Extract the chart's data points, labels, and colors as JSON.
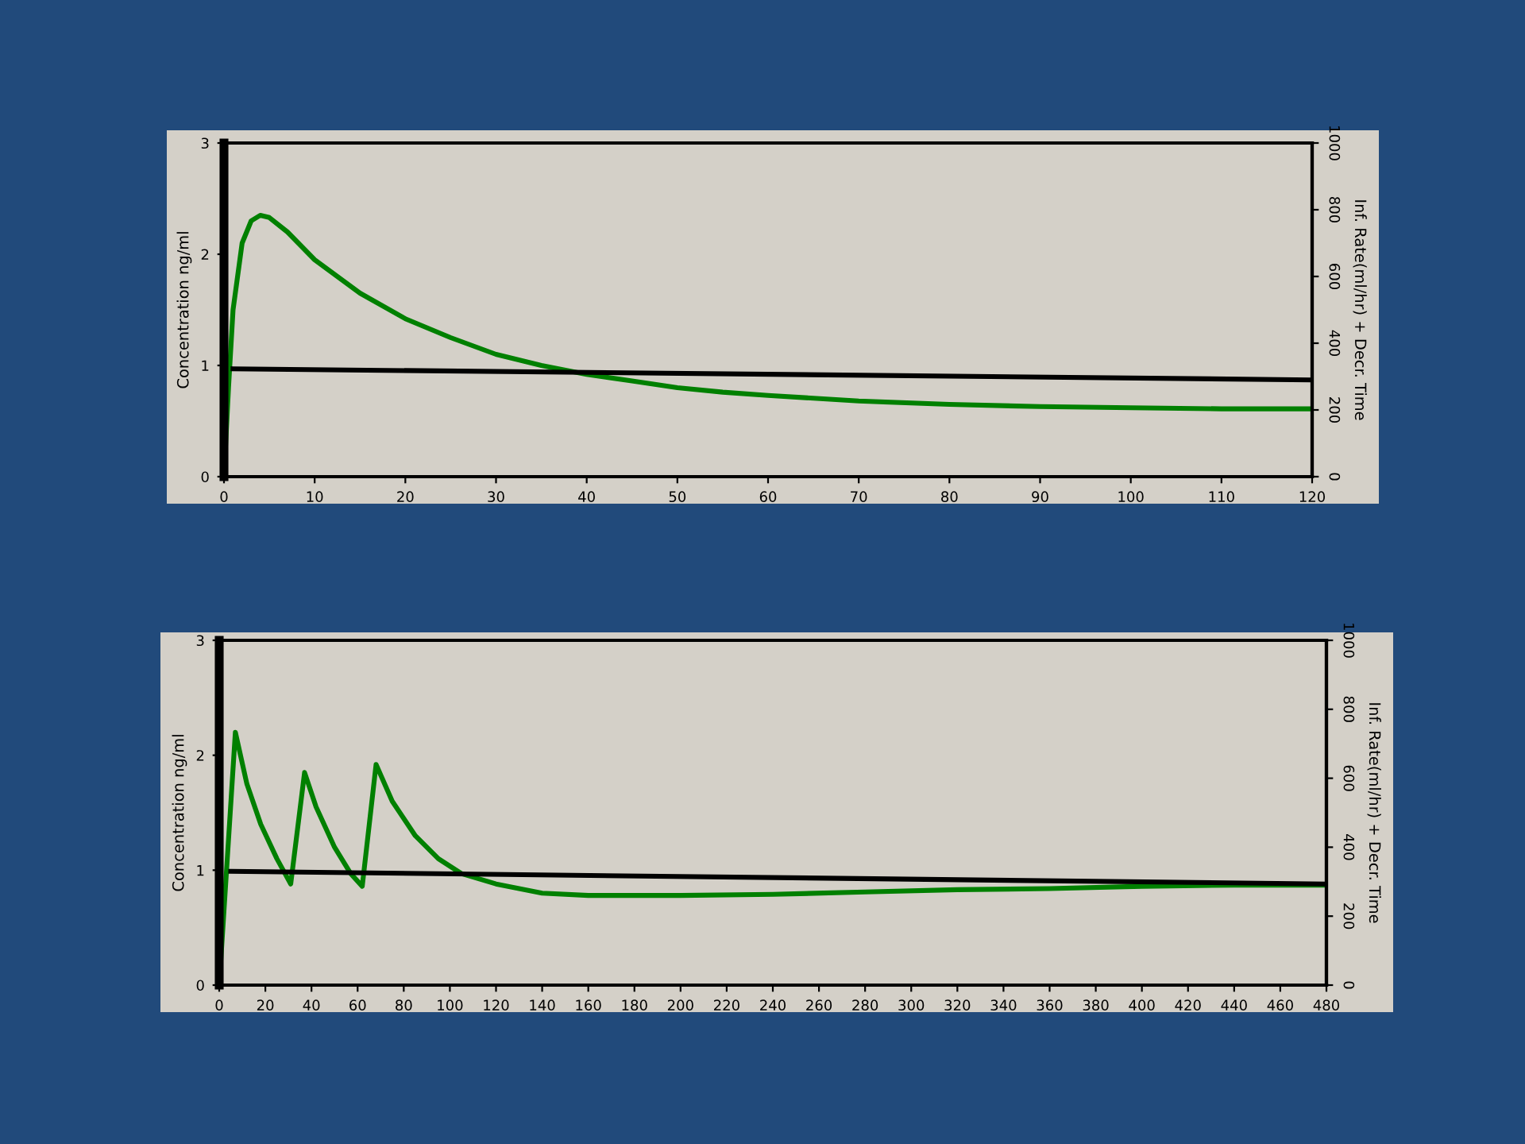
{
  "chart_data": [
    {
      "type": "line",
      "ylabel": "Concentration ng/ml",
      "y2label": "Inf. Rate(ml/hr) + Decr. Time",
      "xlim": [
        0,
        120
      ],
      "xticks": [
        0,
        10,
        20,
        30,
        40,
        50,
        60,
        70,
        80,
        90,
        100,
        110,
        120
      ],
      "ylim": [
        0,
        3
      ],
      "yticks": [
        0,
        1,
        2,
        3
      ],
      "y2lim": [
        0,
        1000
      ],
      "y2ticks": [
        0,
        200,
        400,
        600,
        800,
        1000
      ],
      "grid": false,
      "legend": false,
      "series": [
        {
          "color": "#008000",
          "x": [
            0,
            0.5,
            1,
            2,
            3,
            4,
            5,
            7,
            10,
            15,
            20,
            25,
            30,
            35,
            40,
            45,
            50,
            55,
            60,
            70,
            80,
            90,
            100,
            110,
            120
          ],
          "values": [
            0,
            0.8,
            1.5,
            2.1,
            2.3,
            2.35,
            2.33,
            2.2,
            1.95,
            1.65,
            1.42,
            1.25,
            1.1,
            1.0,
            0.92,
            0.86,
            0.8,
            0.76,
            0.73,
            0.68,
            0.65,
            0.63,
            0.62,
            0.61,
            0.61
          ]
        },
        {
          "color": "#000000",
          "x": [
            1,
            120
          ],
          "values": [
            0.97,
            0.87
          ]
        }
      ]
    },
    {
      "type": "line",
      "ylabel": "Concentration ng/ml",
      "y2label": "Inf. Rate(ml/hr) + Decr. Time",
      "xlim": [
        0,
        480
      ],
      "xticks": [
        0,
        20,
        40,
        60,
        80,
        100,
        120,
        140,
        160,
        180,
        200,
        220,
        240,
        260,
        280,
        300,
        320,
        340,
        360,
        380,
        400,
        420,
        440,
        460,
        480
      ],
      "ylim": [
        0,
        3
      ],
      "yticks": [
        0,
        1,
        2,
        3
      ],
      "y2lim": [
        0,
        1000
      ],
      "y2ticks": [
        0,
        200,
        400,
        600,
        800,
        1000
      ],
      "grid": false,
      "legend": false,
      "series": [
        {
          "color": "#008000",
          "x": [
            0,
            7,
            12,
            18,
            25,
            31,
            37,
            42,
            50,
            57,
            62,
            68,
            75,
            85,
            95,
            105,
            120,
            140,
            160,
            200,
            240,
            280,
            320,
            360,
            400,
            440,
            480
          ],
          "values": [
            0,
            2.2,
            1.75,
            1.4,
            1.1,
            0.88,
            1.85,
            1.55,
            1.2,
            0.97,
            0.86,
            1.92,
            1.6,
            1.3,
            1.1,
            0.97,
            0.88,
            0.8,
            0.78,
            0.78,
            0.79,
            0.81,
            0.83,
            0.84,
            0.86,
            0.87,
            0.87
          ]
        },
        {
          "color": "#000000",
          "x": [
            5,
            480
          ],
          "values": [
            0.99,
            0.88
          ]
        }
      ]
    }
  ]
}
